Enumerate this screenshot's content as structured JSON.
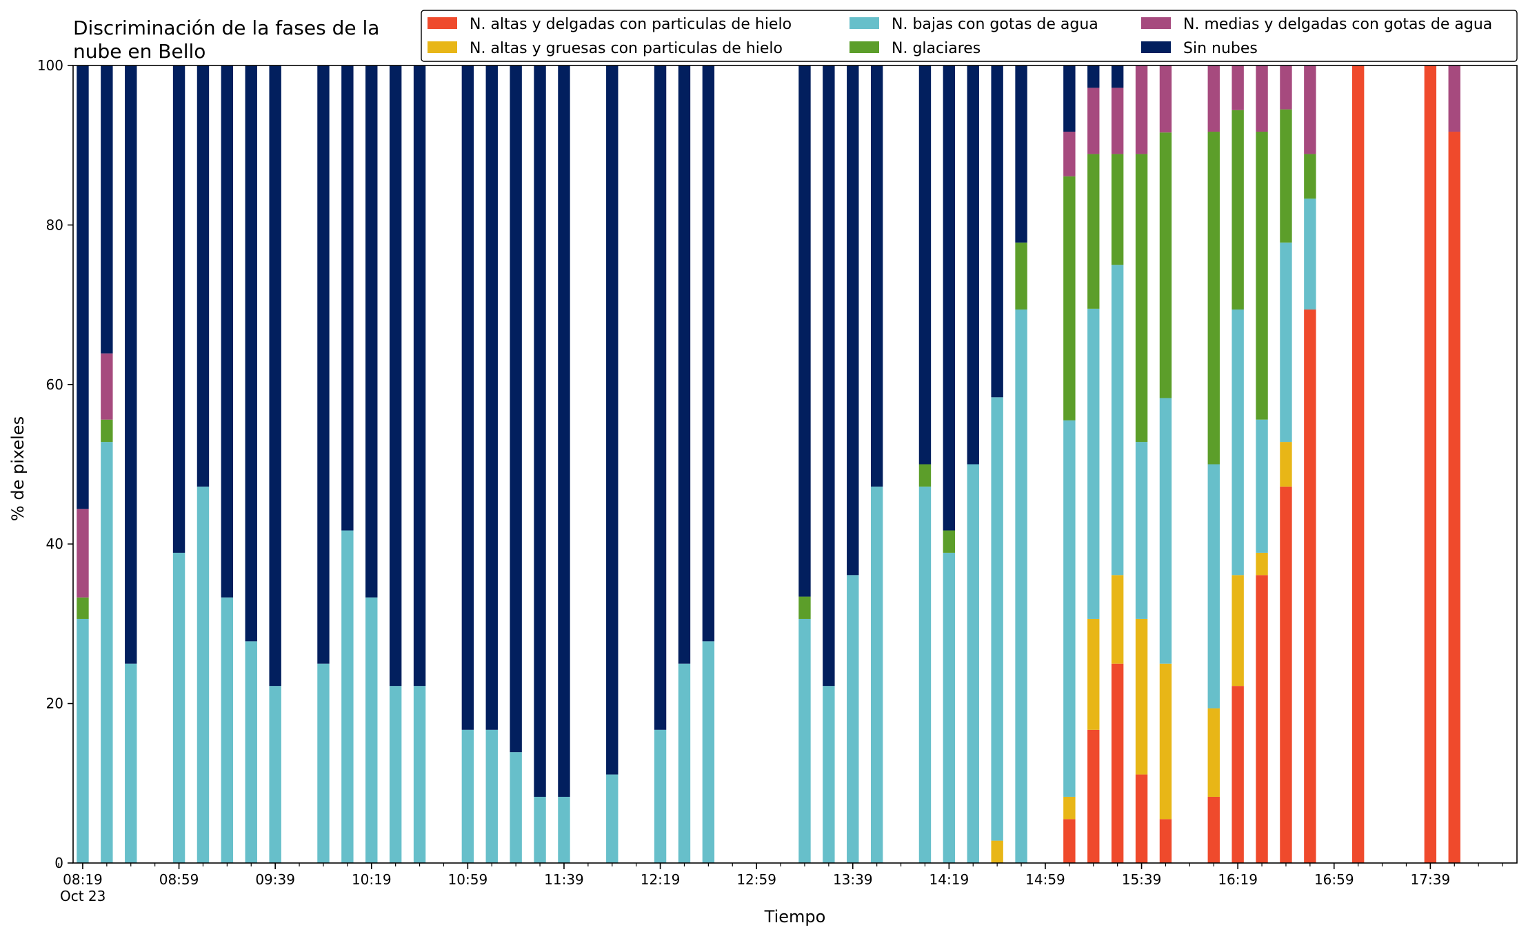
{
  "chart_data": {
    "type": "bar",
    "stacked": true,
    "title": "Discriminación de la fases de la nube en Bello",
    "title_lines": [
      "Discriminación de la fases de la",
      "nube en Bello"
    ],
    "xlabel": "Tiempo",
    "ylabel": "% de pixeles",
    "ylim": [
      0,
      100
    ],
    "yticks": [
      0,
      20,
      40,
      60,
      80,
      100
    ],
    "xlim": [
      "08:15",
      "18:15"
    ],
    "xticks": [
      {
        "time": "08:19",
        "label": "08:19",
        "sub": "Oct 23"
      },
      {
        "time": "08:59",
        "label": "08:59"
      },
      {
        "time": "09:39",
        "label": "09:39"
      },
      {
        "time": "10:19",
        "label": "10:19"
      },
      {
        "time": "10:59",
        "label": "10:59"
      },
      {
        "time": "11:39",
        "label": "11:39"
      },
      {
        "time": "12:19",
        "label": "12:19"
      },
      {
        "time": "12:59",
        "label": "12:59"
      },
      {
        "time": "13:39",
        "label": "13:39"
      },
      {
        "time": "14:19",
        "label": "14:19"
      },
      {
        "time": "14:59",
        "label": "14:59"
      },
      {
        "time": "15:39",
        "label": "15:39"
      },
      {
        "time": "16:19",
        "label": "16:19"
      },
      {
        "time": "16:59",
        "label": "16:59"
      },
      {
        "time": "17:39",
        "label": "17:39"
      }
    ],
    "grid": false,
    "legend_position": "top-right",
    "categories": [
      "08:19",
      "08:29",
      "08:39",
      "08:59",
      "09:09",
      "09:19",
      "09:29",
      "09:39",
      "09:59",
      "10:09",
      "10:19",
      "10:29",
      "10:39",
      "10:59",
      "11:09",
      "11:19",
      "11:29",
      "11:39",
      "11:59",
      "12:19",
      "12:29",
      "12:39",
      "13:19",
      "13:29",
      "13:39",
      "13:49",
      "14:09",
      "14:19",
      "14:29",
      "14:39",
      "14:49",
      "15:09",
      "15:19",
      "15:29",
      "15:39",
      "15:49",
      "16:09",
      "16:19",
      "16:29",
      "16:39",
      "16:49",
      "17:09",
      "17:39",
      "17:49"
    ],
    "series": [
      {
        "name": "N. altas y delgadas con particulas de hielo",
        "color": "#ef4a2c",
        "values": [
          0,
          0,
          0,
          0,
          0,
          0,
          0,
          0,
          0,
          0,
          0,
          0,
          0,
          0,
          0,
          0,
          0,
          0,
          0,
          0,
          0,
          0,
          0,
          0,
          0,
          0,
          0,
          0,
          0,
          0,
          0,
          5.5,
          16.7,
          25,
          11.1,
          5.5,
          8.3,
          22.2,
          36.1,
          47.2,
          69.4,
          100,
          100,
          91.7
        ]
      },
      {
        "name": "N. altas y gruesas con particulas de hielo",
        "color": "#e8b617",
        "values": [
          0,
          0,
          0,
          0,
          0,
          0,
          0,
          0,
          0,
          0,
          0,
          0,
          0,
          0,
          0,
          0,
          0,
          0,
          0,
          0,
          0,
          0,
          0,
          0,
          0,
          0,
          0,
          0,
          0,
          2.8,
          0,
          2.8,
          13.9,
          11.1,
          19.5,
          19.5,
          11.1,
          13.9,
          2.8,
          5.6,
          0,
          0,
          0,
          0
        ]
      },
      {
        "name": "N. bajas con gotas de agua",
        "color": "#67bfca",
        "values": [
          30.6,
          52.8,
          25,
          38.9,
          47.2,
          33.3,
          27.8,
          22.2,
          25,
          41.7,
          33.3,
          22.2,
          22.2,
          16.7,
          16.7,
          13.9,
          8.3,
          8.3,
          11.1,
          16.7,
          25,
          27.8,
          30.6,
          22.2,
          36.1,
          47.2,
          47.2,
          38.9,
          50,
          55.6,
          69.4,
          47.2,
          38.9,
          38.9,
          22.2,
          33.3,
          30.6,
          33.3,
          16.7,
          25,
          13.9,
          0,
          0,
          0
        ]
      },
      {
        "name": "N. glaciares",
        "color": "#5c9e2a",
        "values": [
          2.7,
          2.8,
          0,
          0,
          0,
          0,
          0,
          0,
          0,
          0,
          0,
          0,
          0,
          0,
          0,
          0,
          0,
          0,
          0,
          0,
          0,
          0,
          2.8,
          0,
          0,
          0,
          2.8,
          2.8,
          0,
          0,
          8.4,
          30.6,
          19.4,
          13.9,
          36.1,
          33.3,
          41.7,
          25,
          36.1,
          16.7,
          5.6,
          0,
          0,
          0
        ]
      },
      {
        "name": "N. medias y delgadas con gotas de agua",
        "color": "#a64a7e",
        "values": [
          11.1,
          8.3,
          0,
          0,
          0,
          0,
          0,
          0,
          0,
          0,
          0,
          0,
          0,
          0,
          0,
          0,
          0,
          0,
          0,
          0,
          0,
          0,
          0,
          0,
          0,
          0,
          0,
          0,
          0,
          0,
          0,
          5.6,
          8.3,
          8.3,
          11.1,
          8.4,
          8.3,
          5.6,
          8.3,
          5.5,
          11.1,
          0,
          0,
          8.3
        ]
      },
      {
        "name": "Sin nubes",
        "color": "#021f5e",
        "values": [
          55.6,
          36.1,
          75,
          61.1,
          52.8,
          66.7,
          72.2,
          77.8,
          75,
          58.3,
          66.7,
          77.8,
          77.8,
          83.3,
          83.3,
          86.1,
          91.7,
          91.7,
          88.9,
          83.3,
          75,
          72.2,
          66.6,
          77.8,
          63.9,
          52.8,
          50,
          58.3,
          50,
          41.6,
          22.2,
          8.3,
          2.8,
          2.8,
          0,
          0,
          0,
          0,
          0,
          0,
          0,
          0,
          0,
          0
        ]
      }
    ]
  }
}
